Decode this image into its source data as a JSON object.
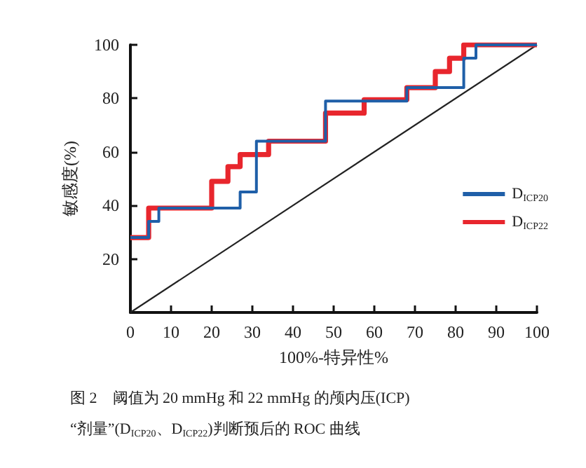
{
  "chart_data": {
    "type": "step",
    "xlabel": "100%-特异性%",
    "ylabel": "敏感度(%)",
    "annotations": [
      "图 2　阈值为 20 mmHg 和 22 mmHg 的颅内压(ICP)",
      "“剂量”(D$_{ICP20}$、D$_{ICP22}$)判断预后的 ROC 曲线"
    ],
    "xlim": [
      0,
      100
    ],
    "ylim": [
      0,
      100
    ],
    "xticks": [
      0,
      10,
      20,
      30,
      40,
      50,
      60,
      70,
      80,
      90,
      100
    ],
    "yticks": [
      20,
      40,
      60,
      80,
      100
    ],
    "grid": false,
    "legend": "right",
    "marker": "none",
    "line_style": "solid",
    "series": [
      {
        "name": "D$_{ICP20}$",
        "color": "#1f5fa8",
        "x": [
          0,
          4.5,
          7,
          27,
          31,
          48,
          68,
          82,
          85,
          100
        ],
        "values": [
          28,
          34,
          39,
          45,
          64,
          79,
          84,
          95,
          100,
          100
        ]
      },
      {
        "name": "D$_{ICP22}$",
        "color": "#e8262d",
        "x": [
          0,
          4.5,
          20,
          24,
          27,
          34,
          48,
          57.5,
          68,
          75,
          78.5,
          82,
          100
        ],
        "values": [
          28,
          39,
          49,
          54.5,
          59,
          64,
          74.5,
          79.5,
          84,
          90,
          95,
          100,
          100
        ]
      },
      {
        "type": "line",
        "color": "#222222",
        "x": [
          0,
          100
        ],
        "values": [
          0,
          100
        ]
      }
    ]
  }
}
